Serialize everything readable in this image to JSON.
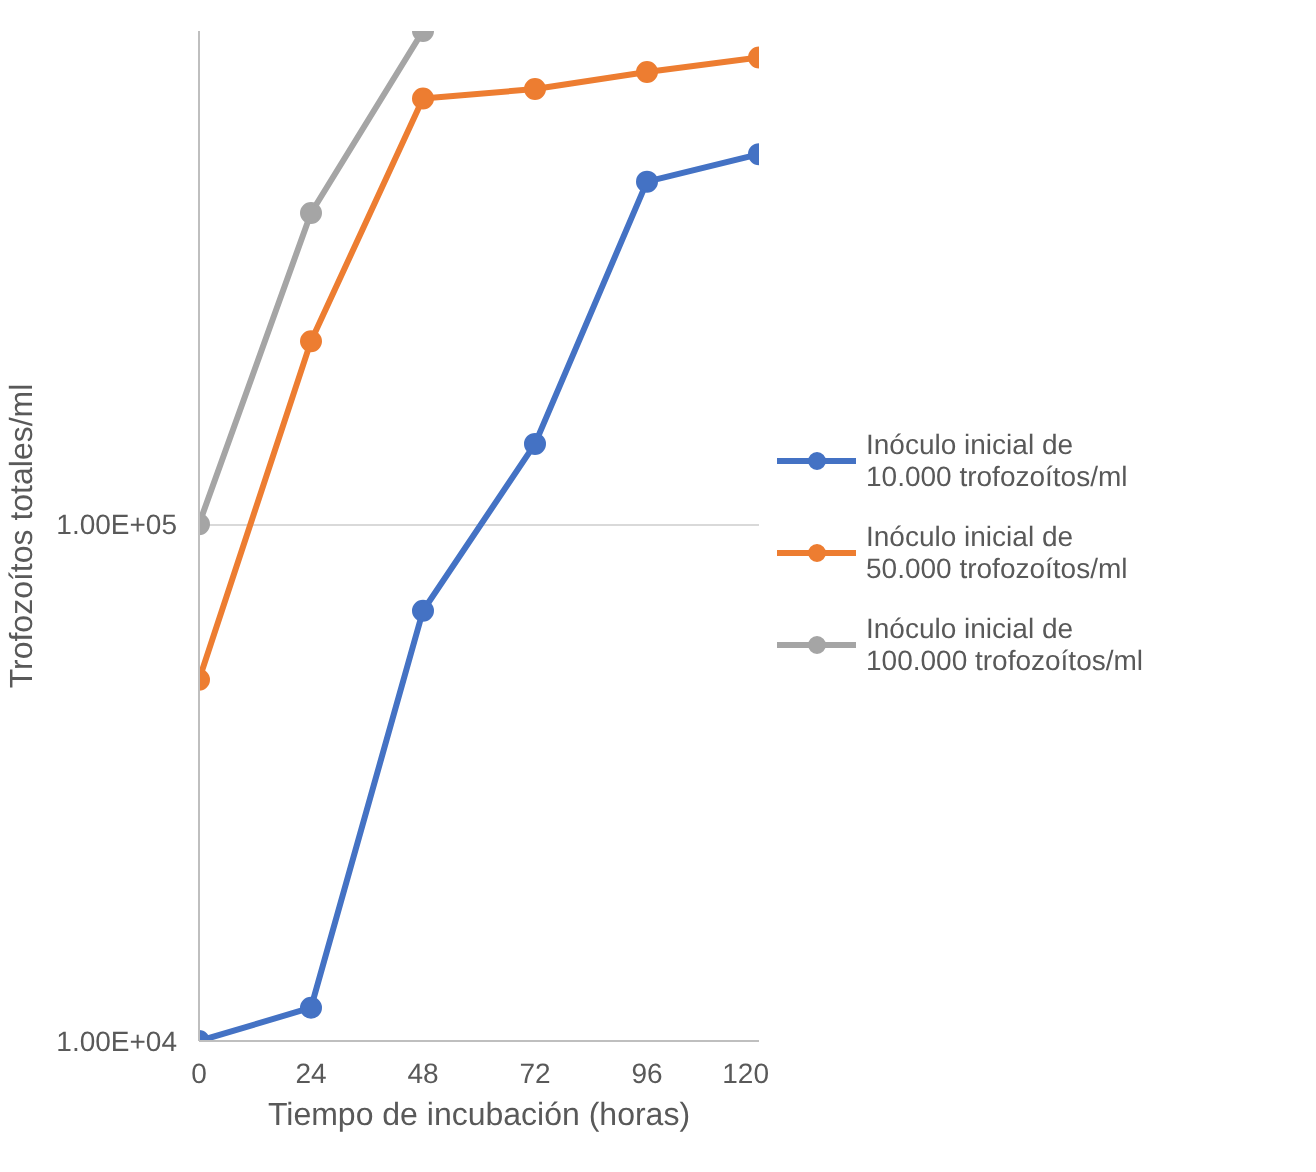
{
  "chart_data": {
    "type": "line",
    "xlabel": "Tiempo de incubación (horas)",
    "ylabel": "Trofozoítos totales/ml",
    "x": [
      0,
      24,
      48,
      72,
      96,
      120
    ],
    "series": [
      {
        "name": "Inóculo inicial de 10.000 trofozoítos/ml",
        "color": "#4472c4",
        "values": [
          10000,
          11600,
          68000,
          143000,
          460000,
          520000
        ]
      },
      {
        "name": "Inóculo inicial de 50.000 trofozoítos/ml",
        "color": "#ed7d31",
        "values": [
          50000,
          226000,
          666000,
          695000,
          750000,
          800000
        ]
      },
      {
        "name": "Inóculo inicial de 100.000 trofozoítos/ml",
        "color": "#a5a5a5",
        "values": [
          100000,
          400000,
          900000,
          null,
          null,
          null
        ]
      }
    ],
    "xlim": [
      0,
      120
    ],
    "xticks": [
      0,
      24,
      48,
      72,
      96,
      120
    ],
    "ylim": [
      10000,
      900000
    ],
    "yticks": [
      {
        "value": 10000,
        "label": "1.00E+04"
      },
      {
        "value": 100000,
        "label": "1.00E+05"
      }
    ],
    "log": "y",
    "grid": "y",
    "legend": "right",
    "marker": "circle",
    "line_style": "solid"
  }
}
